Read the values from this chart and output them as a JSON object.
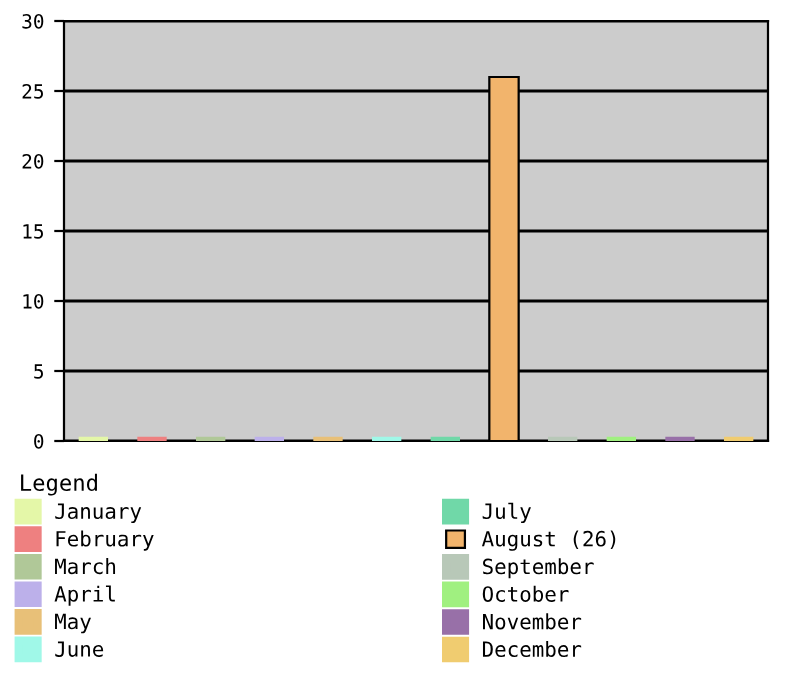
{
  "chart_data": {
    "type": "bar",
    "legend_title": "Legend",
    "legend": "bottom",
    "grid": "y",
    "categories": [
      null,
      null,
      null,
      null,
      null,
      null,
      null,
      null,
      null,
      null,
      null,
      null
    ],
    "ylim": [
      0,
      30
    ],
    "yticks": [
      0,
      5,
      10,
      15,
      20,
      25,
      30
    ],
    "series": [
      {
        "name": "January",
        "color": "#e4f7a8",
        "values": [
          0,
          null,
          null,
          null,
          null,
          null,
          null,
          null,
          null,
          null,
          null,
          null
        ]
      },
      {
        "name": "February",
        "color": "#ee8080",
        "values": [
          null,
          0,
          null,
          null,
          null,
          null,
          null,
          null,
          null,
          null,
          null,
          null
        ]
      },
      {
        "name": "March",
        "color": "#b0c898",
        "values": [
          null,
          null,
          0,
          null,
          null,
          null,
          null,
          null,
          null,
          null,
          null,
          null
        ]
      },
      {
        "name": "April",
        "color": "#bcb0ea",
        "values": [
          null,
          null,
          null,
          0,
          null,
          null,
          null,
          null,
          null,
          null,
          null,
          null
        ]
      },
      {
        "name": "May",
        "color": "#e8c078",
        "values": [
          null,
          null,
          null,
          null,
          0,
          null,
          null,
          null,
          null,
          null,
          null,
          null
        ]
      },
      {
        "name": "June",
        "color": "#a0f8e8",
        "values": [
          null,
          null,
          null,
          null,
          null,
          0,
          null,
          null,
          null,
          null,
          null,
          null
        ]
      },
      {
        "name": "July",
        "color": "#70d8a8",
        "values": [
          null,
          null,
          null,
          null,
          null,
          null,
          0,
          null,
          null,
          null,
          null,
          null
        ]
      },
      {
        "name": "August (26)",
        "color": "#f2b46c",
        "values": [
          null,
          null,
          null,
          null,
          null,
          null,
          null,
          26,
          null,
          null,
          null,
          null
        ]
      },
      {
        "name": "September",
        "color": "#b8c8b8",
        "values": [
          null,
          null,
          null,
          null,
          null,
          null,
          null,
          null,
          0,
          null,
          null,
          null
        ]
      },
      {
        "name": "October",
        "color": "#a0f080",
        "values": [
          null,
          null,
          null,
          null,
          null,
          null,
          null,
          null,
          null,
          0,
          null,
          null
        ]
      },
      {
        "name": "November",
        "color": "#9870a8",
        "values": [
          null,
          null,
          null,
          null,
          null,
          null,
          null,
          null,
          null,
          null,
          0,
          null
        ]
      },
      {
        "name": "December",
        "color": "#f0cc70",
        "values": [
          null,
          null,
          null,
          null,
          null,
          null,
          null,
          null,
          null,
          null,
          null,
          0
        ]
      }
    ]
  }
}
